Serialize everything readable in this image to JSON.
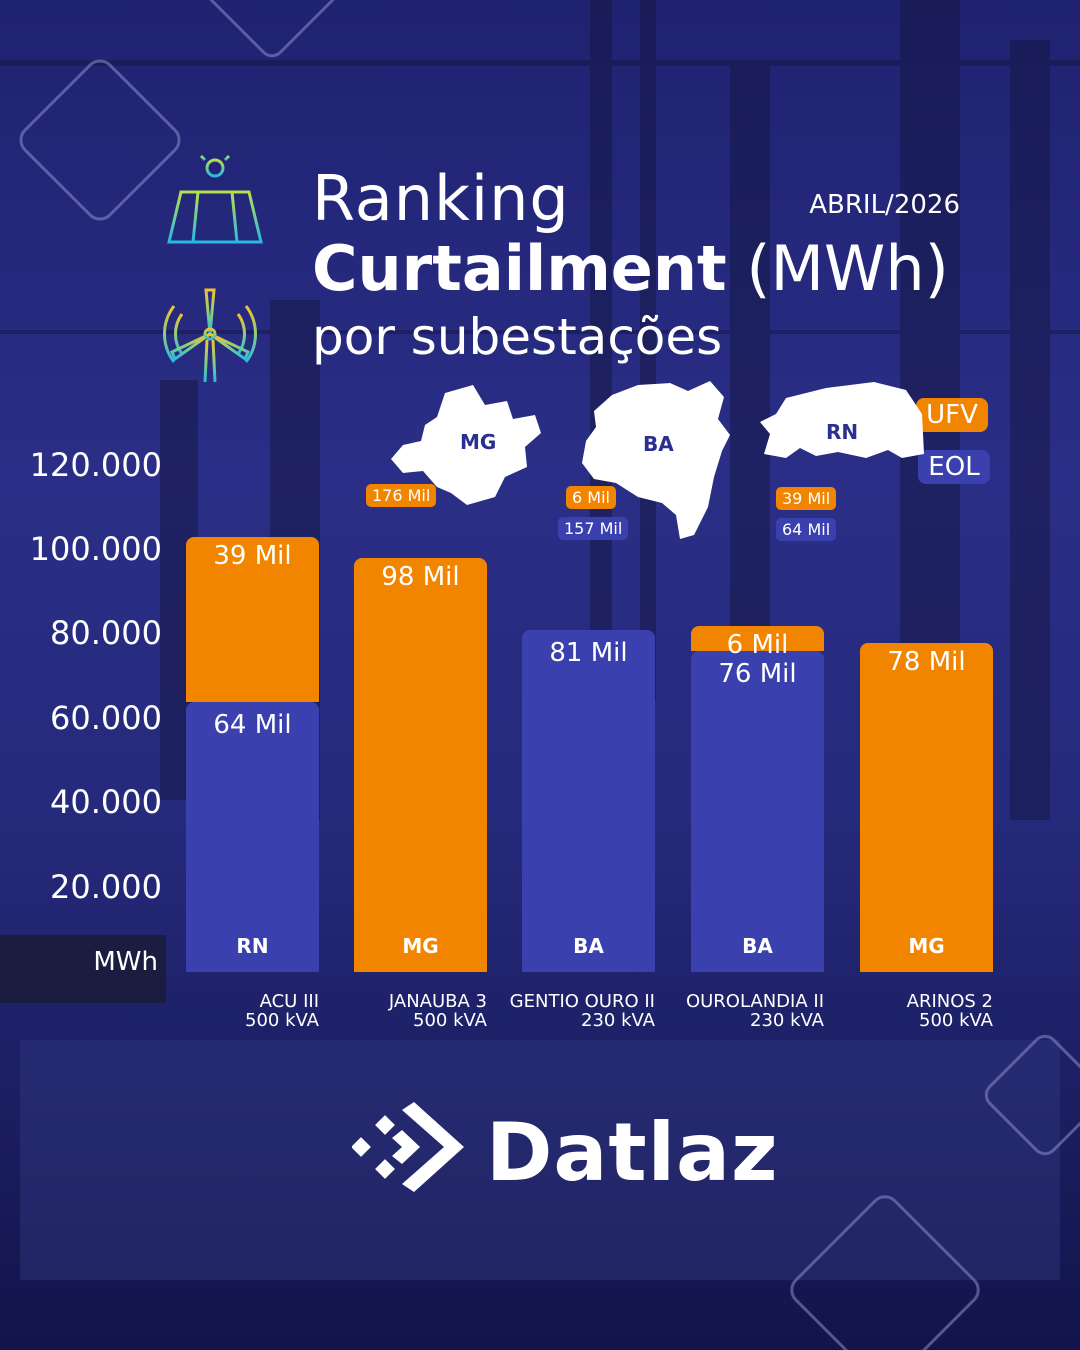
{
  "header": {
    "title_line1": "Ranking",
    "title_bold": "Curtailment",
    "title_unit": "(MWh)",
    "title_line3": "por subestações",
    "date": "ABRIL/2026"
  },
  "legend": {
    "ufv": "UFV",
    "eol": "EOL"
  },
  "colors": {
    "ufv": "#f28500",
    "eol": "#3a40ad",
    "background": "#262a7c"
  },
  "state_totals": [
    {
      "state": "MG",
      "ufv": "176 Mil",
      "eol": ""
    },
    {
      "state": "BA",
      "ufv": "6 Mil",
      "eol": "157 Mil"
    },
    {
      "state": "RN",
      "ufv": "39 Mil",
      "eol": "64 Mil"
    }
  ],
  "unit_label": "MWh",
  "brand": "Datlaz",
  "chart_data": {
    "type": "bar",
    "stacked": true,
    "categories": [
      "ACU III 500 kVA",
      "JANAUBA 3 500 kVA",
      "GENTIO OURO II 230 kVA",
      "OUROLANDIA II 230 kVA",
      "ARINOS 2 500 kVA"
    ],
    "category_names": [
      "ACU III",
      "JANAUBA 3",
      "GENTIO OURO II",
      "OUROLANDIA II",
      "ARINOS 2"
    ],
    "category_voltages": [
      "500 kVA",
      "500 kVA",
      "230 kVA",
      "230 kVA",
      "500 kVA"
    ],
    "states": [
      "RN",
      "MG",
      "BA",
      "BA",
      "MG"
    ],
    "series": [
      {
        "name": "EOL",
        "values": [
          64000,
          0,
          81000,
          76000,
          0
        ],
        "labels": [
          "64 Mil",
          "",
          "81 Mil",
          "76 Mil",
          ""
        ]
      },
      {
        "name": "UFV",
        "values": [
          39000,
          98000,
          0,
          6000,
          78000
        ],
        "labels": [
          "39 Mil",
          "98 Mil",
          "",
          "6 Mil",
          "78 Mil"
        ]
      }
    ],
    "yticks": [
      "20.000",
      "40.000",
      "60.000",
      "80.000",
      "100.000",
      "120.000"
    ],
    "ytick_values": [
      20000,
      40000,
      60000,
      80000,
      100000,
      120000
    ],
    "ylim": [
      0,
      120000
    ],
    "ylabel": "MWh",
    "grid": false,
    "legend": "top-right"
  }
}
